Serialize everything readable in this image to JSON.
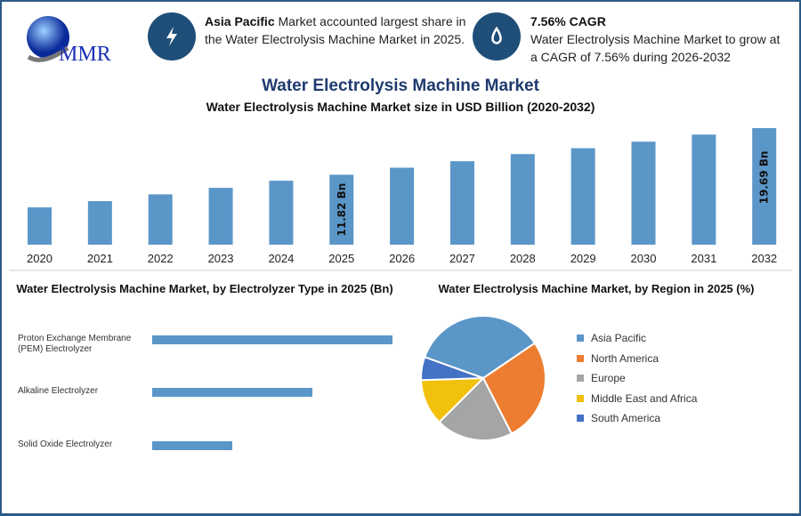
{
  "logo": {
    "text": "MMR"
  },
  "highlights": [
    {
      "icon": "lightning-icon",
      "bold": "Asia Pacific",
      "text": " Market accounted largest share in the Water Electrolysis Machine Market in 2025."
    },
    {
      "icon": "water-drop-icon",
      "bold": "7.56% CAGR",
      "text": "Water Electrolysis Machine Market to grow at a CAGR of 7.56% during 2026-2032"
    }
  ],
  "page_title": "Water Electrolysis Machine Market",
  "colors": {
    "bar": "#5b96c8",
    "title": "#1f3a6e",
    "icon_bg": "#1f4e79"
  },
  "chart_data": [
    {
      "type": "bar",
      "title": "Water Electrolysis Machine Market size in USD Billion (2020-2032)",
      "categories": [
        "2020",
        "2021",
        "2022",
        "2023",
        "2024",
        "2025",
        "2026",
        "2027",
        "2028",
        "2029",
        "2030",
        "2031",
        "2032"
      ],
      "values": [
        6.3,
        7.35,
        8.5,
        9.6,
        10.8,
        11.82,
        13.0,
        14.1,
        15.3,
        16.3,
        17.4,
        18.6,
        19.69
      ],
      "data_labels": {
        "2025": "11.82 Bn",
        "2032": "19.69 Bn"
      },
      "ylim": [
        0,
        20
      ],
      "grid": false
    },
    {
      "type": "bar",
      "orientation": "horizontal",
      "title": "Water Electrolysis Machine Market, by Electrolyzer Type in 2025 (Bn)",
      "categories": [
        "Proton Exchange Membrane (PEM) Electrolyzer",
        "Alkaline Electrolyzer",
        "Solid Oxide Electrolyzer"
      ],
      "values": [
        5.91,
        3.94,
        1.97
      ],
      "grid": false
    },
    {
      "type": "pie",
      "title": "Water Electrolysis Machine Market, by Region in 2025 (%)",
      "categories": [
        "Asia Pacific",
        "North America",
        "Europe",
        "Middle East and Africa",
        "South America"
      ],
      "values": [
        35,
        27,
        20,
        12,
        6
      ],
      "colors": [
        "#5b96c8",
        "#ed7d31",
        "#a5a5a5",
        "#f2c10d",
        "#4472c4"
      ],
      "legend": "right"
    }
  ]
}
